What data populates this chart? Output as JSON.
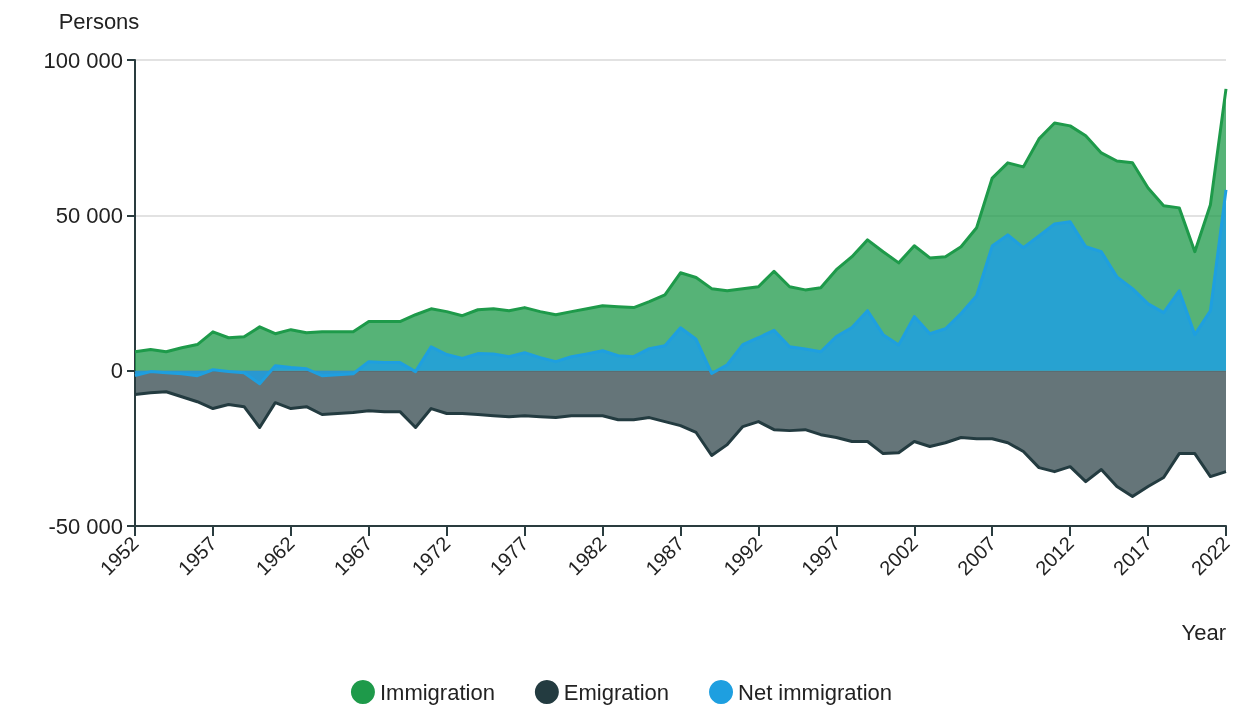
{
  "chart_data": {
    "type": "area",
    "xlabel": "Year",
    "ylabel": "Persons",
    "x": [
      1952,
      1953,
      1954,
      1955,
      1956,
      1957,
      1958,
      1959,
      1960,
      1961,
      1962,
      1963,
      1964,
      1965,
      1966,
      1967,
      1968,
      1969,
      1970,
      1971,
      1972,
      1973,
      1974,
      1975,
      1976,
      1977,
      1978,
      1979,
      1980,
      1981,
      1982,
      1983,
      1984,
      1985,
      1986,
      1987,
      1988,
      1989,
      1990,
      1991,
      1992,
      1993,
      1994,
      1995,
      1996,
      1997,
      1998,
      1999,
      2000,
      2001,
      2002,
      2003,
      2004,
      2005,
      2006,
      2007,
      2008,
      2009,
      2010,
      2011,
      2012,
      2013,
      2014,
      2015,
      2016,
      2017,
      2018,
      2019,
      2020,
      2021,
      2022
    ],
    "series": [
      {
        "name": "Immigration",
        "color": "#1e9a4a",
        "values": [
          6100,
          6800,
          6100,
          7400,
          8400,
          12500,
          10600,
          10900,
          14100,
          11900,
          13200,
          12200,
          12500,
          12500,
          12500,
          15800,
          15800,
          15800,
          18000,
          19900,
          19000,
          17700,
          19600,
          19900,
          19300,
          20300,
          19000,
          18000,
          19000,
          19900,
          20900,
          20600,
          20300,
          22200,
          24400,
          31500,
          30000,
          26400,
          25700,
          26400,
          27000,
          32000,
          27000,
          26000,
          26700,
          32500,
          36700,
          42100,
          38300,
          34700,
          40200,
          36300,
          36700,
          39900,
          46000,
          62000,
          66900,
          65600,
          74600,
          79700,
          78800,
          75600,
          70100,
          67500,
          66900,
          58800,
          53100,
          52400,
          38300,
          53400,
          90700
        ]
      },
      {
        "name": "Emigration",
        "color": "#233b40",
        "values": [
          -7700,
          -7100,
          -6800,
          -8400,
          -10000,
          -12200,
          -10900,
          -11600,
          -18300,
          -10300,
          -12200,
          -11600,
          -14100,
          -13800,
          -13500,
          -12900,
          -13200,
          -13200,
          -18300,
          -12200,
          -13800,
          -13800,
          -14100,
          -14500,
          -14800,
          -14500,
          -14800,
          -15100,
          -14500,
          -14500,
          -14500,
          -15800,
          -15800,
          -15100,
          -16400,
          -17700,
          -19900,
          -27300,
          -23800,
          -18000,
          -16400,
          -19000,
          -19300,
          -19000,
          -20600,
          -21500,
          -22800,
          -22800,
          -26700,
          -26400,
          -22800,
          -24400,
          -23200,
          -21500,
          -21900,
          -21900,
          -23200,
          -26000,
          -31200,
          -32500,
          -30900,
          -35700,
          -31800,
          -37300,
          -40500,
          -37300,
          -34400,
          -26700,
          -26700,
          -34100,
          -32500
        ]
      },
      {
        "name": "Net immigration",
        "color": "#1e9fe0",
        "values": [
          -1600,
          -300,
          -700,
          -1000,
          -1600,
          300,
          -300,
          -700,
          -4200,
          1600,
          1000,
          600,
          -1600,
          -1300,
          -1000,
          2900,
          2600,
          2600,
          -300,
          7700,
          5200,
          3900,
          5500,
          5400,
          4500,
          5800,
          4200,
          2900,
          4500,
          5400,
          6400,
          4800,
          4500,
          7100,
          8000,
          13800,
          10100,
          -900,
          1900,
          8400,
          10600,
          13000,
          7700,
          7000,
          6100,
          11000,
          13900,
          19300,
          11600,
          8300,
          17400,
          11900,
          13500,
          18400,
          24100,
          40100,
          43700,
          39600,
          43400,
          47200,
          47900,
          39900,
          38300,
          30200,
          26400,
          21500,
          18700,
          25700,
          11600,
          19300,
          58200
        ]
      }
    ],
    "xlim": [
      1952,
      2022
    ],
    "xticks": [
      1952,
      1957,
      1962,
      1967,
      1972,
      1977,
      1982,
      1987,
      1992,
      1997,
      2002,
      2007,
      2012,
      2017,
      2022
    ],
    "ylim": [
      -50000,
      100000
    ],
    "yticks": [
      {
        "value": -50000,
        "label": "-50 000"
      },
      0,
      {
        "value": 50000,
        "label": "50 000"
      },
      {
        "value": 100000,
        "label": "100 000"
      }
    ],
    "grid": "y",
    "legend": "bottom",
    "marker": "none"
  }
}
